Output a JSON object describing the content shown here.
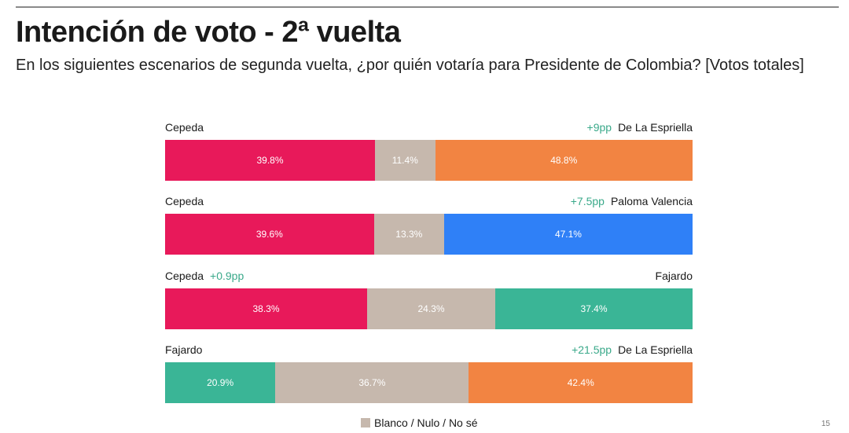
{
  "title": "Intención de voto - 2ª vuelta",
  "subtitle": "En los siguientes escenarios de segunda vuelta, ¿por quién votaría para Presidente de Colombia? [Votos totales]",
  "page_number": "15",
  "colors": {
    "cepeda": "#e8195a",
    "blank": "#c6b8ad",
    "de_la_espriella": "#f28442",
    "paloma_valencia": "#2f80f7",
    "fajardo": "#3ab596",
    "lead_text": "#3aa98a"
  },
  "legend": {
    "label": "Blanco / Nulo / No sé"
  },
  "chart_data": {
    "type": "bar",
    "orientation": "horizontal-stacked-100",
    "scenarios": [
      {
        "left": "Cepeda",
        "right": "De La Espriella",
        "lead": "+9pp",
        "lead_side": "right",
        "segments": [
          {
            "name": "Cepeda",
            "value": 39.8,
            "label": "39.8%",
            "color": "#e8195a"
          },
          {
            "name": "Blanco / Nulo / No sé",
            "value": 11.4,
            "label": "11.4%",
            "color": "#c6b8ad"
          },
          {
            "name": "De La Espriella",
            "value": 48.8,
            "label": "48.8%",
            "color": "#f28442"
          }
        ]
      },
      {
        "left": "Cepeda",
        "right": "Paloma Valencia",
        "lead": "+7.5pp",
        "lead_side": "right",
        "segments": [
          {
            "name": "Cepeda",
            "value": 39.6,
            "label": "39.6%",
            "color": "#e8195a"
          },
          {
            "name": "Blanco / Nulo / No sé",
            "value": 13.3,
            "label": "13.3%",
            "color": "#c6b8ad"
          },
          {
            "name": "Paloma Valencia",
            "value": 47.1,
            "label": "47.1%",
            "color": "#2f80f7"
          }
        ]
      },
      {
        "left": "Cepeda",
        "right": "Fajardo",
        "lead": "+0.9pp",
        "lead_side": "left",
        "segments": [
          {
            "name": "Cepeda",
            "value": 38.3,
            "label": "38.3%",
            "color": "#e8195a"
          },
          {
            "name": "Blanco / Nulo / No sé",
            "value": 24.3,
            "label": "24.3%",
            "color": "#c6b8ad"
          },
          {
            "name": "Fajardo",
            "value": 37.4,
            "label": "37.4%",
            "color": "#3ab596"
          }
        ]
      },
      {
        "left": "Fajardo",
        "right": "De La Espriella",
        "lead": "+21.5pp",
        "lead_side": "right",
        "segments": [
          {
            "name": "Fajardo",
            "value": 20.9,
            "label": "20.9%",
            "color": "#3ab596"
          },
          {
            "name": "Blanco / Nulo / No sé",
            "value": 36.7,
            "label": "36.7%",
            "color": "#c6b8ad"
          },
          {
            "name": "De La Espriella",
            "value": 42.4,
            "label": "42.4%",
            "color": "#f28442"
          }
        ]
      }
    ]
  }
}
